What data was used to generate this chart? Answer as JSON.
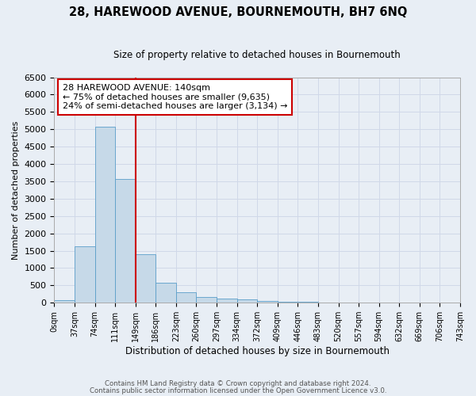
{
  "title": "28, HAREWOOD AVENUE, BOURNEMOUTH, BH7 6NQ",
  "subtitle": "Size of property relative to detached houses in Bournemouth",
  "xlabel": "Distribution of detached houses by size in Bournemouth",
  "ylabel": "Number of detached properties",
  "footnote1": "Contains HM Land Registry data © Crown copyright and database right 2024.",
  "footnote2": "Contains public sector information licensed under the Open Government Licence v3.0.",
  "annotation_line1": "28 HAREWOOD AVENUE: 140sqm",
  "annotation_line2": "← 75% of detached houses are smaller (9,635)",
  "annotation_line3": "24% of semi-detached houses are larger (3,134) →",
  "bar_values": [
    75,
    1625,
    5075,
    3575,
    1400,
    575,
    300,
    175,
    125,
    100,
    50,
    30,
    20,
    10,
    5,
    5,
    3,
    2,
    1,
    1
  ],
  "x_labels": [
    "0sqm",
    "37sqm",
    "74sqm",
    "111sqm",
    "149sqm",
    "186sqm",
    "223sqm",
    "260sqm",
    "297sqm",
    "334sqm",
    "372sqm",
    "409sqm",
    "446sqm",
    "483sqm",
    "520sqm",
    "557sqm",
    "594sqm",
    "632sqm",
    "669sqm",
    "706sqm",
    "743sqm"
  ],
  "bar_color": "#c6d9e8",
  "bar_edge_color": "#5a9ec9",
  "red_line_x": 4.0,
  "ylim": [
    0,
    6500
  ],
  "yticks": [
    0,
    500,
    1000,
    1500,
    2000,
    2500,
    3000,
    3500,
    4000,
    4500,
    5000,
    5500,
    6000,
    6500
  ],
  "annotation_box_color": "#ffffff",
  "annotation_box_edge_color": "#cc0000",
  "red_line_color": "#cc0000",
  "grid_color": "#d0d8e8",
  "bg_color": "#e8eef5"
}
